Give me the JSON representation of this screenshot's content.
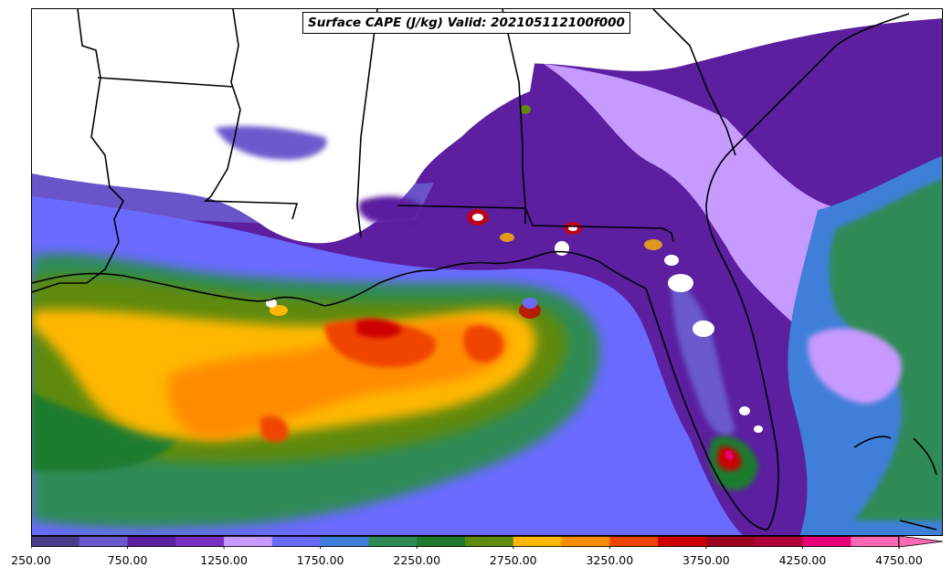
{
  "title": "Surface CAPE (J/kg) Valid: 202105112100f000",
  "colorbar": {
    "colors": [
      "#483d8b",
      "#6a5acd",
      "#5b1fa0",
      "#7b2fc2",
      "#c79aff",
      "#6a6aff",
      "#3f7fd9",
      "#2e8b57",
      "#1e7b2e",
      "#5f8a0a",
      "#ffb700",
      "#ff8c00",
      "#f04500",
      "#cc0000",
      "#9b0020",
      "#b0003a",
      "#e8007a",
      "#ff69b4"
    ],
    "extend_color": "#ff69b4",
    "tick_labels": [
      "250.00",
      "750.00",
      "1250.00",
      "1750.00",
      "2250.00",
      "2750.00",
      "3250.00",
      "3750.00",
      "4250.00",
      "4750.00"
    ]
  }
}
